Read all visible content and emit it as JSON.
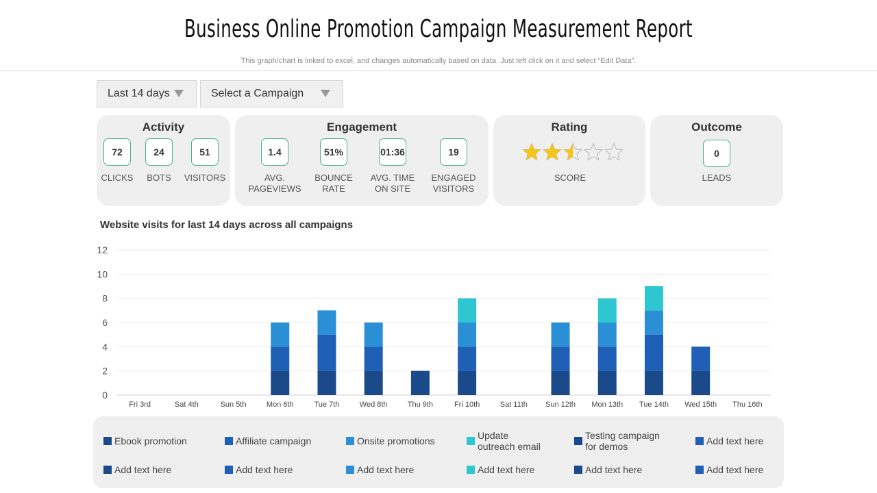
{
  "header": {
    "title": "Business Online Promotion Campaign Measurement Report",
    "subtitle": "This graph/chart is linked to excel, and changes automatically based on data. Just left click on it and select “Edit Data”."
  },
  "filters": {
    "period_label": "Last 14 days",
    "campaign_label": "Select a Campaign"
  },
  "activity": {
    "title": "Activity",
    "clicks": "72",
    "clicks_label": "CLICKS",
    "bots": "24",
    "bots_label": "BOTS",
    "visitors": "51",
    "visitors_label": "VISITORS"
  },
  "engagement": {
    "title": "Engagement",
    "pageviews": "1.4",
    "pageviews_label_1": "AVG.",
    "pageviews_label_2": "PAGEVIEWS",
    "bounce": "51%",
    "bounce_label_1": "BOUNCE",
    "bounce_label_2": "RATE",
    "time": "01:36",
    "time_label_1": "AVG. TIME",
    "time_label_2": "ON SITE",
    "engaged": "19",
    "engaged_label_1": "ENGAGED",
    "engaged_label_2": "VISITORS"
  },
  "rating": {
    "title": "Rating",
    "score_label": "SCORE",
    "stars": 2.5,
    "max_stars": 5,
    "star_color": "#f5c518"
  },
  "outcome": {
    "title": "Outcome",
    "leads": "0",
    "leads_label": "LEADS"
  },
  "chart_title": "Website visits for last 14 days across all campaigns",
  "chart_data": {
    "type": "bar",
    "stacked": true,
    "categories": [
      "Fri 3rd",
      "Sat 4th",
      "Sun 5th",
      "Mon 6th",
      "Tue 7th",
      "Wed 8th",
      "Thu 9th",
      "Fri 10th",
      "Sat 11th",
      "Sun 12th",
      "Mon 13th",
      "Tue 14th",
      "Wed 15th",
      "Thu 16th"
    ],
    "series": [
      {
        "name": "Ebook promotion",
        "color": "#1b4a8a",
        "values": [
          0,
          0,
          0,
          2,
          2,
          2,
          2,
          2,
          0,
          2,
          2,
          2,
          2,
          0
        ]
      },
      {
        "name": "Affiliate campaign",
        "color": "#1f5fb5",
        "values": [
          0,
          0,
          0,
          2,
          3,
          2,
          0,
          2,
          0,
          2,
          2,
          3,
          2,
          0
        ]
      },
      {
        "name": "Onsite promotions",
        "color": "#2b8fd6",
        "values": [
          0,
          0,
          0,
          2,
          2,
          2,
          0,
          2,
          0,
          2,
          2,
          2,
          0,
          0
        ]
      },
      {
        "name": "Update outreach email",
        "color": "#2ec6d0",
        "values": [
          0,
          0,
          0,
          0,
          0,
          0,
          0,
          2,
          0,
          0,
          2,
          2,
          0,
          0
        ]
      }
    ],
    "ylim": [
      0,
      12
    ],
    "yticks": [
      0,
      2,
      4,
      6,
      8,
      10,
      12
    ],
    "grid": true,
    "legend": "bottom"
  },
  "legend": {
    "row1": [
      {
        "label": "Ebook promotion",
        "color": "#1b4a8a"
      },
      {
        "label": "Affiliate campaign",
        "color": "#1f5fb5"
      },
      {
        "label": "Onsite promotions",
        "color": "#2b8fd6"
      },
      {
        "label_1": "Update",
        "label_2": "outreach email",
        "color": "#2ec6d0"
      },
      {
        "label_1": "Testing campaign",
        "label_2": "for demos",
        "color": "#1b4a8a"
      },
      {
        "label": "Add text here",
        "color": "#1f5fb5"
      }
    ],
    "row2": [
      {
        "label": "Add text here",
        "color": "#1b4a8a"
      },
      {
        "label": "Add text here",
        "color": "#1f5fb5"
      },
      {
        "label": "Add text here",
        "color": "#2b8fd6"
      },
      {
        "label": "Add text here",
        "color": "#2ec6d0"
      },
      {
        "label": "Add text here",
        "color": "#1b4a8a"
      },
      {
        "label": "Add text here",
        "color": "#1f5fb5"
      }
    ]
  }
}
